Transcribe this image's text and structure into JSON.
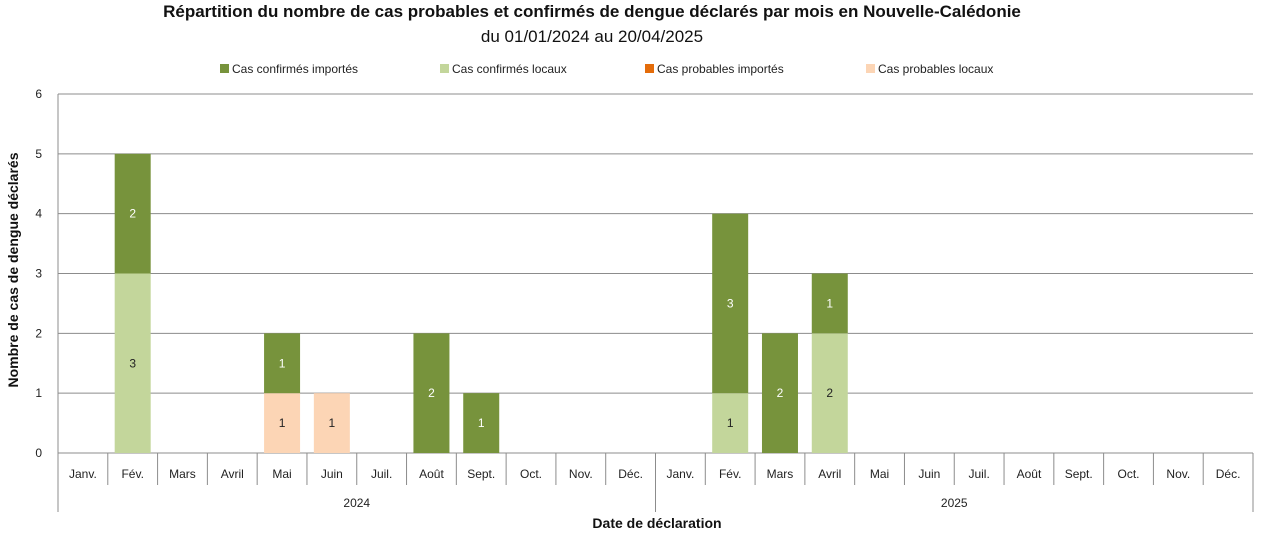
{
  "chart_data": {
    "type": "bar",
    "stacked": true,
    "title": "Répartition du nombre de cas probables et confirmés de dengue déclarés par mois en Nouvelle-Calédonie",
    "subtitle": "du 01/01/2024 au 20/04/2025",
    "xlabel": "Date de déclaration",
    "ylabel": "Nombre de cas de dengue déclarés",
    "ylim": [
      0,
      6
    ],
    "yticks": [
      0,
      1,
      2,
      3,
      4,
      5,
      6
    ],
    "grid": true,
    "legend_position": "top",
    "groups": [
      {
        "label": "2024",
        "categories": [
          "Janv.",
          "Fév.",
          "Mars",
          "Avril",
          "Mai",
          "Juin",
          "Juil.",
          "Août",
          "Sept.",
          "Oct.",
          "Nov.",
          "Déc."
        ]
      },
      {
        "label": "2025",
        "categories": [
          "Janv.",
          "Fév.",
          "Mars",
          "Avril",
          "Mai",
          "Juin",
          "Juil.",
          "Août",
          "Sept.",
          "Oct.",
          "Nov.",
          "Déc."
        ]
      }
    ],
    "series": [
      {
        "name": "Cas confirmés importés",
        "color": "#77933c",
        "values": [
          0,
          2,
          0,
          0,
          1,
          0,
          0,
          2,
          1,
          0,
          0,
          0,
          0,
          3,
          2,
          1,
          0,
          0,
          0,
          0,
          0,
          0,
          0,
          0
        ]
      },
      {
        "name": "Cas confirmés locaux",
        "color": "#c3d69b",
        "values": [
          0,
          3,
          0,
          0,
          0,
          0,
          0,
          0,
          0,
          0,
          0,
          0,
          0,
          1,
          0,
          2,
          0,
          0,
          0,
          0,
          0,
          0,
          0,
          0
        ]
      },
      {
        "name": "Cas probables importés",
        "color": "#e46c0a",
        "values": [
          0,
          0,
          0,
          0,
          0,
          0,
          0,
          0,
          0,
          0,
          0,
          0,
          0,
          0,
          0,
          0,
          0,
          0,
          0,
          0,
          0,
          0,
          0,
          0
        ]
      },
      {
        "name": "Cas probables locaux",
        "color": "#fcd5b5",
        "values": [
          0,
          0,
          0,
          0,
          1,
          1,
          0,
          0,
          0,
          0,
          0,
          0,
          0,
          0,
          0,
          0,
          0,
          0,
          0,
          0,
          0,
          0,
          0,
          0
        ]
      }
    ],
    "stack_order": [
      "Cas probables locaux",
      "Cas probables importés",
      "Cas confirmés locaux",
      "Cas confirmés importés"
    ]
  }
}
